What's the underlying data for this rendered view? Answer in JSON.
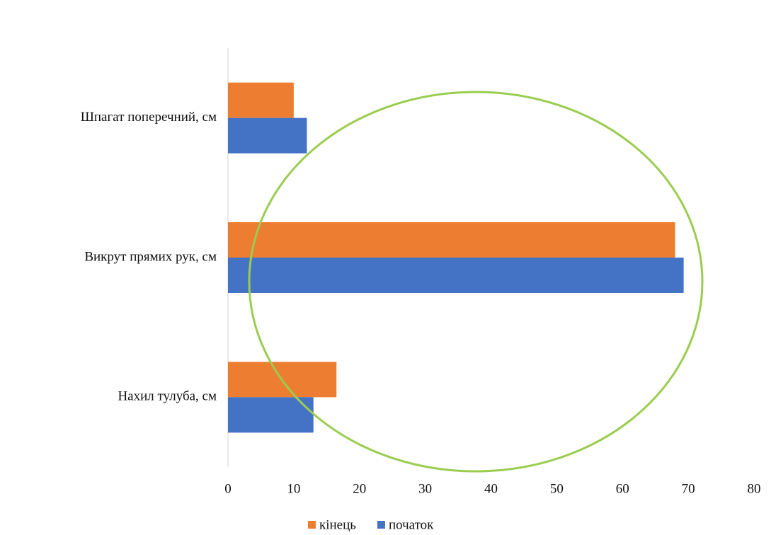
{
  "chart_data": {
    "type": "hbar",
    "categories": [
      "Шпагат поперечний, см",
      "Викрут прямих рук, см",
      "Нахил тулуба, см"
    ],
    "series": [
      {
        "name": "кінець",
        "color": "#ed7d31",
        "values": [
          10,
          68,
          16.5
        ]
      },
      {
        "name": "початок",
        "color": "#4472c4",
        "values": [
          12,
          69.3,
          13
        ]
      }
    ],
    "xlim": [
      0,
      80
    ],
    "xticks": [
      0,
      10,
      20,
      30,
      40,
      50,
      60,
      70,
      80
    ],
    "legend": "bottom"
  }
}
